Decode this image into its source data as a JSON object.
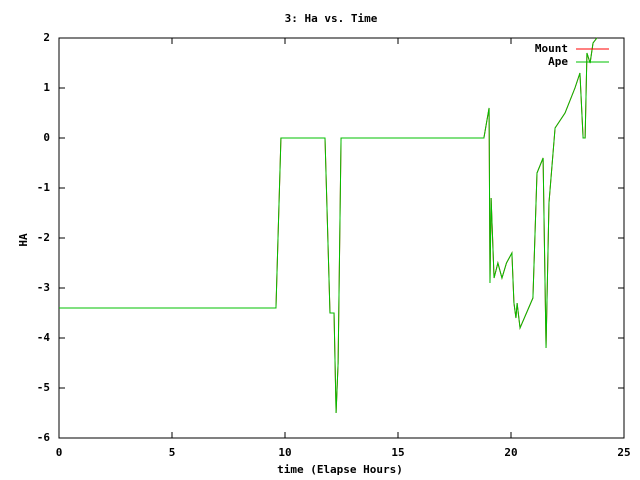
{
  "chart_data": {
    "type": "line",
    "title": "3: Ha vs. Time",
    "x_label": "time (Elapse Hours)",
    "y_label": "HA",
    "x": [
      0,
      9.6,
      9.82,
      11.77,
      11.99,
      12.17,
      12.26,
      12.35,
      12.48,
      18.8,
      19.03,
      19.07,
      19.12,
      19.25,
      19.42,
      19.6,
      19.8,
      20.04,
      20.13,
      20.22,
      20.27,
      20.4,
      20.97,
      21.15,
      21.42,
      21.55,
      21.68,
      21.95,
      22.39,
      22.83,
      23.05,
      23.19,
      23.28,
      23.36,
      23.5,
      23.63,
      23.8
    ],
    "series": [
      {
        "name": "Mount",
        "color": "#ff0000",
        "values": [
          -3.4,
          -3.4,
          0,
          0,
          -3.5,
          -3.5,
          -5.5,
          -4.5,
          0,
          0,
          0.6,
          -2.9,
          -1.2,
          -2.8,
          -2.5,
          -2.8,
          -2.5,
          -2.3,
          -3.3,
          -3.6,
          -3.3,
          -3.8,
          -3.2,
          -0.7,
          -0.4,
          -4.2,
          -1.3,
          0.2,
          0.5,
          1.0,
          1.3,
          0,
          0,
          1.7,
          1.5,
          1.9,
          2
        ]
      },
      {
        "name": "Ape",
        "color": "#00c000",
        "values": [
          -3.4,
          -3.4,
          0,
          0,
          -3.5,
          -3.5,
          -5.5,
          -4.5,
          0,
          0,
          0.6,
          -2.9,
          -1.2,
          -2.8,
          -2.5,
          -2.8,
          -2.5,
          -2.3,
          -3.3,
          -3.6,
          -3.3,
          -3.8,
          -3.2,
          -0.7,
          -0.4,
          -4.2,
          -1.3,
          0.2,
          0.5,
          1.0,
          1.3,
          0,
          0,
          1.7,
          1.5,
          1.9,
          2
        ]
      }
    ],
    "xlim": [
      0,
      25
    ],
    "xticks": [
      0,
      5,
      10,
      15,
      20,
      25
    ],
    "ylim": [
      -6,
      2
    ],
    "yticks": [
      -6,
      -5,
      -4,
      -3,
      -2,
      -1,
      0,
      1,
      2
    ],
    "legend": "top-right"
  }
}
